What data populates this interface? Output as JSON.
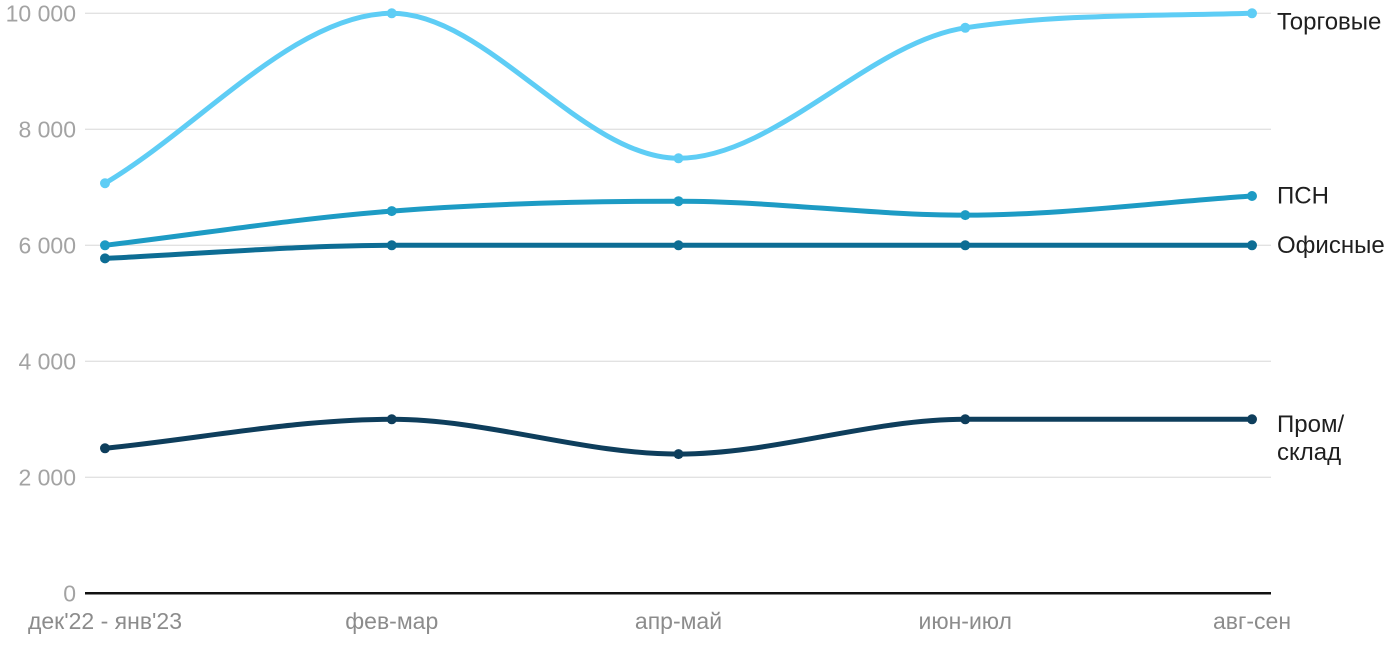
{
  "chart_data": {
    "type": "line",
    "title": "",
    "xlabel": "",
    "ylabel": "",
    "ylim": [
      0,
      10000
    ],
    "grid": true,
    "legend_position": "right-line-end",
    "x_categories": [
      "дек'22 - янв'23",
      "фев-мар",
      "апр-май",
      "июн-июл",
      "авг-сен"
    ],
    "y_ticks": [
      {
        "value": 10000,
        "label": "10 000"
      },
      {
        "value": 8000,
        "label": "8 000"
      },
      {
        "value": 6000,
        "label": "6 000"
      },
      {
        "value": 4000,
        "label": "4 000"
      },
      {
        "value": 2000,
        "label": "2 000"
      },
      {
        "value": 0,
        "label": "0"
      }
    ],
    "series": [
      {
        "id": "torgovye",
        "name": "Торговые",
        "color": "#5ecdf5",
        "label_lines": [
          "Торговые"
        ],
        "values": [
          7070,
          10000,
          7500,
          9750,
          10000
        ]
      },
      {
        "id": "psn",
        "name": "ПСН",
        "color": "#1d9bc4",
        "label_lines": [
          "ПСН"
        ],
        "values": [
          6000,
          6590,
          6760,
          6520,
          6850
        ]
      },
      {
        "id": "ofisnye",
        "name": "Офисные",
        "color": "#0d6d94",
        "label_lines": [
          "Офисные"
        ],
        "values": [
          5775,
          6000,
          6000,
          6000,
          6000
        ]
      },
      {
        "id": "prom-sklad",
        "name": "Пром/склад",
        "color": "#0e3e5c",
        "label_lines": [
          "Пром/",
          "склад"
        ],
        "values": [
          2500,
          3000,
          2400,
          3000,
          3000
        ]
      }
    ],
    "colors": {
      "grid": "#e2e2e2",
      "axis": "#111111",
      "y_tick_text": "#a3a3a3",
      "x_tick_text": "#8c8c8c",
      "series_label_text": "#1f1f1f",
      "background": "#ffffff"
    }
  }
}
